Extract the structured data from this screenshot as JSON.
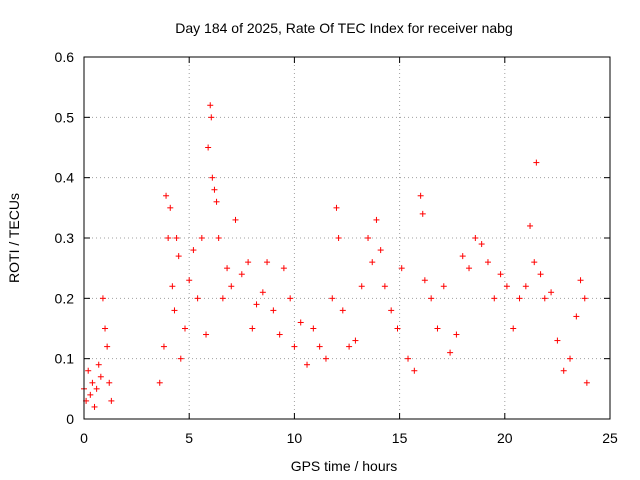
{
  "chart_data": {
    "type": "scatter",
    "title": "Day 184 of 2025, Rate Of TEC Index for receiver nabg",
    "xlabel": "GPS time / hours",
    "ylabel": "ROTI / TECUs",
    "xlim": [
      0,
      25
    ],
    "ylim": [
      0,
      0.6
    ],
    "x_ticks": [
      "0",
      "5",
      "10",
      "15",
      "20",
      "25"
    ],
    "y_ticks": [
      "0",
      "0.1",
      "0.2",
      "0.3",
      "0.4",
      "0.5",
      "0.6"
    ],
    "grid": true,
    "marker": "+",
    "color": "#ff0000",
    "series": [
      {
        "points": [
          [
            0.0,
            0.05
          ],
          [
            0.1,
            0.03
          ],
          [
            0.2,
            0.08
          ],
          [
            0.3,
            0.04
          ],
          [
            0.4,
            0.06
          ],
          [
            0.5,
            0.02
          ],
          [
            0.6,
            0.05
          ],
          [
            0.7,
            0.09
          ],
          [
            0.8,
            0.07
          ],
          [
            0.9,
            0.2
          ],
          [
            1.0,
            0.15
          ],
          [
            1.1,
            0.12
          ],
          [
            1.2,
            0.06
          ],
          [
            1.3,
            0.03
          ],
          [
            3.6,
            0.06
          ],
          [
            3.8,
            0.12
          ],
          [
            3.9,
            0.37
          ],
          [
            4.0,
            0.3
          ],
          [
            4.1,
            0.35
          ],
          [
            4.2,
            0.22
          ],
          [
            4.3,
            0.18
          ],
          [
            4.4,
            0.3
          ],
          [
            4.5,
            0.27
          ],
          [
            4.6,
            0.1
          ],
          [
            4.8,
            0.15
          ],
          [
            5.0,
            0.23
          ],
          [
            5.2,
            0.28
          ],
          [
            5.4,
            0.2
          ],
          [
            5.6,
            0.3
          ],
          [
            5.8,
            0.14
          ],
          [
            5.9,
            0.45
          ],
          [
            6.0,
            0.52
          ],
          [
            6.05,
            0.5
          ],
          [
            6.1,
            0.4
          ],
          [
            6.2,
            0.38
          ],
          [
            6.3,
            0.36
          ],
          [
            6.4,
            0.3
          ],
          [
            6.6,
            0.2
          ],
          [
            6.8,
            0.25
          ],
          [
            7.0,
            0.22
          ],
          [
            7.2,
            0.33
          ],
          [
            7.5,
            0.24
          ],
          [
            7.8,
            0.26
          ],
          [
            8.0,
            0.15
          ],
          [
            8.2,
            0.19
          ],
          [
            8.5,
            0.21
          ],
          [
            8.7,
            0.26
          ],
          [
            9.0,
            0.18
          ],
          [
            9.3,
            0.14
          ],
          [
            9.5,
            0.25
          ],
          [
            9.8,
            0.2
          ],
          [
            10.0,
            0.12
          ],
          [
            10.3,
            0.16
          ],
          [
            10.6,
            0.09
          ],
          [
            10.9,
            0.15
          ],
          [
            11.2,
            0.12
          ],
          [
            11.5,
            0.1
          ],
          [
            11.8,
            0.2
          ],
          [
            12.0,
            0.35
          ],
          [
            12.1,
            0.3
          ],
          [
            12.3,
            0.18
          ],
          [
            12.6,
            0.12
          ],
          [
            12.9,
            0.13
          ],
          [
            13.2,
            0.22
          ],
          [
            13.5,
            0.3
          ],
          [
            13.7,
            0.26
          ],
          [
            13.9,
            0.33
          ],
          [
            14.1,
            0.28
          ],
          [
            14.3,
            0.22
          ],
          [
            14.6,
            0.18
          ],
          [
            14.9,
            0.15
          ],
          [
            15.1,
            0.25
          ],
          [
            15.4,
            0.1
          ],
          [
            15.7,
            0.08
          ],
          [
            16.0,
            0.37
          ],
          [
            16.1,
            0.34
          ],
          [
            16.2,
            0.23
          ],
          [
            16.5,
            0.2
          ],
          [
            16.8,
            0.15
          ],
          [
            17.1,
            0.22
          ],
          [
            17.4,
            0.11
          ],
          [
            17.7,
            0.14
          ],
          [
            18.0,
            0.27
          ],
          [
            18.3,
            0.25
          ],
          [
            18.6,
            0.3
          ],
          [
            18.9,
            0.29
          ],
          [
            19.2,
            0.26
          ],
          [
            19.5,
            0.2
          ],
          [
            19.8,
            0.24
          ],
          [
            20.1,
            0.22
          ],
          [
            20.4,
            0.15
          ],
          [
            20.7,
            0.2
          ],
          [
            21.0,
            0.22
          ],
          [
            21.2,
            0.32
          ],
          [
            21.4,
            0.26
          ],
          [
            21.5,
            0.425
          ],
          [
            21.7,
            0.24
          ],
          [
            21.9,
            0.2
          ],
          [
            22.2,
            0.21
          ],
          [
            22.5,
            0.13
          ],
          [
            22.8,
            0.08
          ],
          [
            23.1,
            0.1
          ],
          [
            23.4,
            0.17
          ],
          [
            23.6,
            0.23
          ],
          [
            23.8,
            0.2
          ],
          [
            23.9,
            0.06
          ]
        ]
      }
    ]
  }
}
